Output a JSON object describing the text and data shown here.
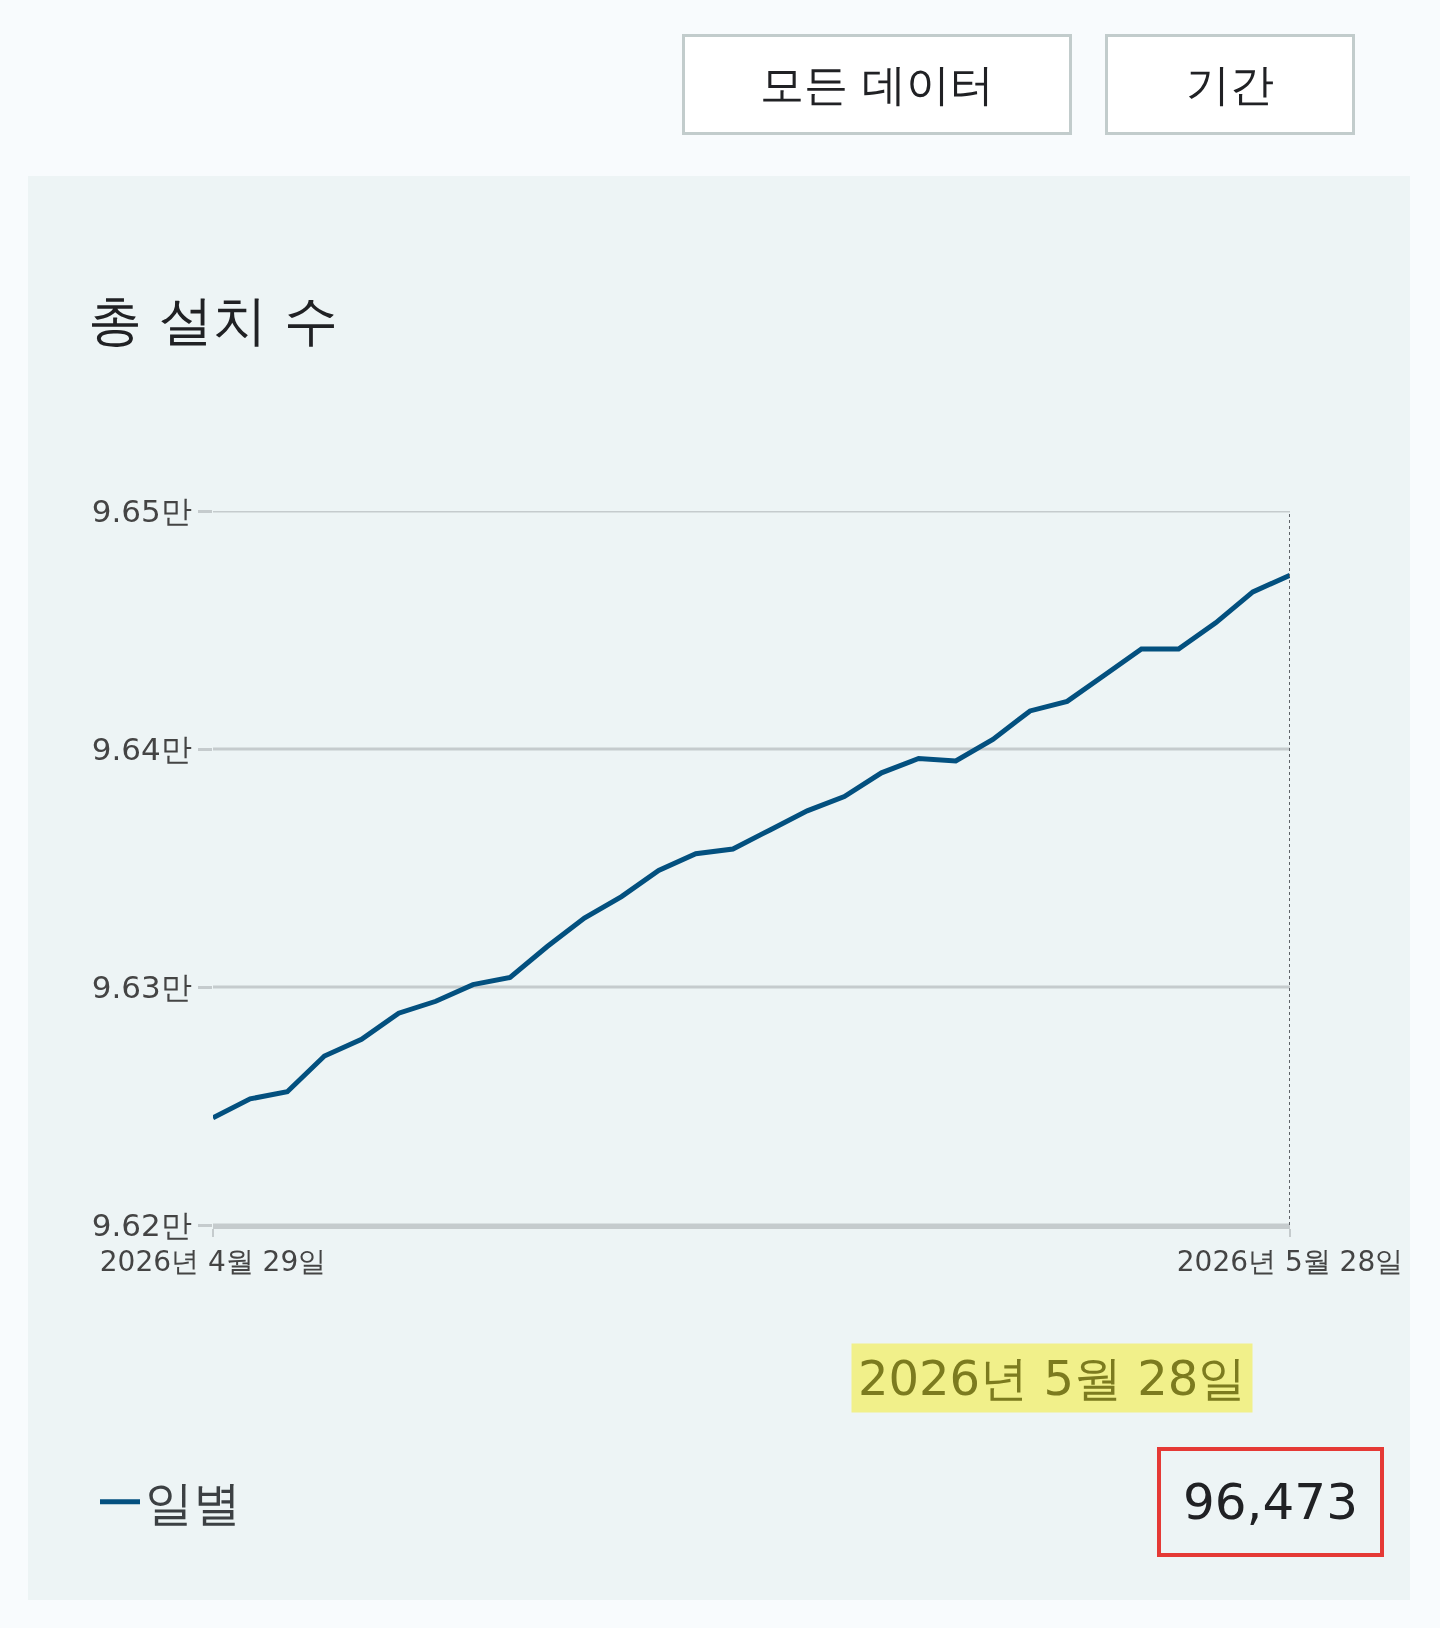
{
  "chart_data": {
    "type": "line",
    "title": "총 설치 수",
    "x": [
      "2026-04-29",
      "2026-04-30",
      "2026-05-01",
      "2026-05-02",
      "2026-05-03",
      "2026-05-04",
      "2026-05-05",
      "2026-05-06",
      "2026-05-07",
      "2026-05-08",
      "2026-05-09",
      "2026-05-10",
      "2026-05-11",
      "2026-05-12",
      "2026-05-13",
      "2026-05-14",
      "2026-05-15",
      "2026-05-16",
      "2026-05-17",
      "2026-05-18",
      "2026-05-19",
      "2026-05-20",
      "2026-05-21",
      "2026-05-22",
      "2026-05-23",
      "2026-05-24",
      "2026-05-25",
      "2026-05-26",
      "2026-05-27",
      "2026-05-28"
    ],
    "series": [
      {
        "name": "일별",
        "color": "#03507f",
        "values": [
          9.6245,
          9.6253,
          9.6256,
          9.6271,
          9.6278,
          9.6289,
          9.6294,
          9.6301,
          9.6304,
          9.6317,
          9.6329,
          9.6338,
          9.6349,
          9.6356,
          9.6358,
          9.6366,
          9.6374,
          9.638,
          9.639,
          9.6396,
          9.6395,
          9.6404,
          9.6416,
          9.642,
          9.6431,
          9.6442,
          9.6442,
          9.6453,
          9.6466,
          9.6473
        ]
      }
    ],
    "xlim": [
      "2026-04-29",
      "2026-05-28"
    ],
    "xticks": [
      {
        "value": "2026-04-29",
        "label": "2026년 4월 29일"
      },
      {
        "value": "2026-05-28",
        "label": "2026년 5월 28일"
      }
    ],
    "ylim": [
      9.62,
      9.65
    ],
    "yticks": [
      {
        "value": 9.62,
        "label": "9.62만"
      },
      {
        "value": 9.63,
        "label": "9.63만"
      },
      {
        "value": 9.64,
        "label": "9.64만"
      },
      {
        "value": 9.65,
        "label": "9.65만"
      }
    ],
    "grid": "y",
    "legend": "bottom left",
    "marker": "none",
    "line_style": "solid",
    "ref_lines": [
      {
        "axis": "x",
        "value": "2026-05-28",
        "label": null,
        "color": "#5f6368",
        "line_style": "dotted"
      }
    ],
    "annotations": [
      "모든 데이터",
      "기간",
      "2026년 5월 28일",
      "96,473"
    ]
  }
}
